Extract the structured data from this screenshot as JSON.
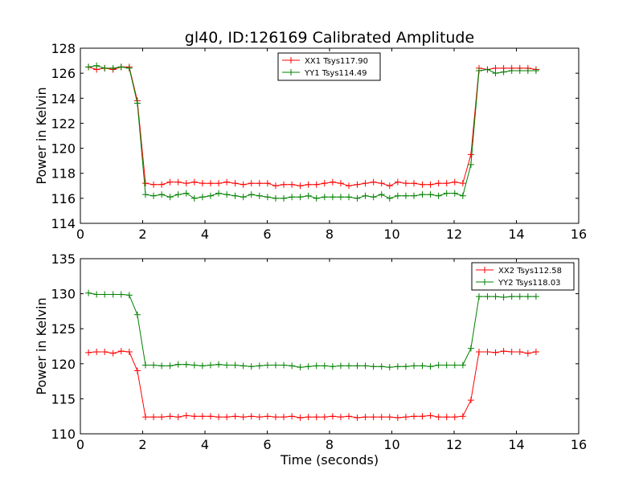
{
  "figure": {
    "title": "gl40, ID:126169 Calibrated Amplitude",
    "xlabel": "Time (seconds)"
  },
  "chart_data": [
    {
      "type": "line",
      "title": "gl40, ID:126169 Calibrated Amplitude",
      "xlabel": "",
      "ylabel": "Power in Kelvin",
      "xlim": [
        0,
        16
      ],
      "ylim": [
        114,
        128
      ],
      "x_ticks": [
        0,
        2,
        4,
        6,
        8,
        10,
        12,
        14,
        16
      ],
      "y_ticks": [
        114,
        116,
        118,
        120,
        122,
        124,
        126,
        128
      ],
      "grid": false,
      "legend_position": "top-center",
      "marker": "plus",
      "x": [
        0.26,
        0.52,
        0.78,
        1.05,
        1.31,
        1.57,
        1.83,
        2.09,
        2.35,
        2.61,
        2.88,
        3.14,
        3.4,
        3.66,
        3.92,
        4.18,
        4.44,
        4.7,
        4.97,
        5.23,
        5.49,
        5.75,
        6.01,
        6.27,
        6.53,
        6.79,
        7.06,
        7.32,
        7.58,
        7.84,
        8.1,
        8.36,
        8.62,
        8.89,
        9.15,
        9.41,
        9.67,
        9.93,
        10.19,
        10.45,
        10.71,
        10.98,
        11.24,
        11.5,
        11.76,
        12.02,
        12.28,
        12.54,
        12.8,
        13.07,
        13.33,
        13.59,
        13.85,
        14.11,
        14.37,
        14.63
      ],
      "series": [
        {
          "name": "XX1 Tsys117.90",
          "color": "#ff0000",
          "values": [
            126.5,
            126.3,
            126.4,
            126.3,
            126.5,
            126.5,
            123.8,
            117.2,
            117.1,
            117.1,
            117.3,
            117.3,
            117.2,
            117.3,
            117.2,
            117.2,
            117.2,
            117.3,
            117.2,
            117.1,
            117.2,
            117.2,
            117.2,
            117.0,
            117.1,
            117.1,
            117.0,
            117.1,
            117.1,
            117.2,
            117.3,
            117.2,
            117.0,
            117.1,
            117.2,
            117.3,
            117.2,
            117.0,
            117.3,
            117.2,
            117.2,
            117.1,
            117.1,
            117.2,
            117.2,
            117.3,
            117.2,
            119.5,
            126.4,
            126.3,
            126.4,
            126.4,
            126.4,
            126.4,
            126.4,
            126.3
          ]
        },
        {
          "name": "YY1 Tsys114.49",
          "color": "#008000",
          "values": [
            126.5,
            126.6,
            126.4,
            126.4,
            126.5,
            126.4,
            123.6,
            116.3,
            116.2,
            116.3,
            116.1,
            116.3,
            116.4,
            116.0,
            116.1,
            116.2,
            116.4,
            116.3,
            116.2,
            116.1,
            116.3,
            116.2,
            116.1,
            116.0,
            116.0,
            116.1,
            116.1,
            116.2,
            116.0,
            116.1,
            116.1,
            116.1,
            116.1,
            116.0,
            116.2,
            116.1,
            116.3,
            116.0,
            116.2,
            116.2,
            116.2,
            116.3,
            116.3,
            116.2,
            116.4,
            116.4,
            116.2,
            118.7,
            126.2,
            126.3,
            126.0,
            126.1,
            126.2,
            126.2,
            126.2,
            126.2
          ]
        }
      ]
    },
    {
      "type": "line",
      "title": "",
      "xlabel": "Time (seconds)",
      "ylabel": "Power in Kelvin",
      "xlim": [
        0,
        16
      ],
      "ylim": [
        110,
        135
      ],
      "x_ticks": [
        0,
        2,
        4,
        6,
        8,
        10,
        12,
        14,
        16
      ],
      "y_ticks": [
        110,
        115,
        120,
        125,
        130,
        135
      ],
      "grid": false,
      "legend_position": "top-right",
      "marker": "plus",
      "x": [
        0.26,
        0.52,
        0.78,
        1.05,
        1.31,
        1.57,
        1.83,
        2.09,
        2.35,
        2.61,
        2.88,
        3.14,
        3.4,
        3.66,
        3.92,
        4.18,
        4.44,
        4.7,
        4.97,
        5.23,
        5.49,
        5.75,
        6.01,
        6.27,
        6.53,
        6.79,
        7.06,
        7.32,
        7.58,
        7.84,
        8.1,
        8.36,
        8.62,
        8.89,
        9.15,
        9.41,
        9.67,
        9.93,
        10.19,
        10.45,
        10.71,
        10.98,
        11.24,
        11.5,
        11.76,
        12.02,
        12.28,
        12.54,
        12.8,
        13.07,
        13.33,
        13.59,
        13.85,
        14.11,
        14.37,
        14.63
      ],
      "series": [
        {
          "name": "XX2 Tsys112.58",
          "color": "#ff0000",
          "values": [
            121.6,
            121.7,
            121.7,
            121.5,
            121.8,
            121.7,
            119.0,
            112.4,
            112.4,
            112.4,
            112.5,
            112.4,
            112.6,
            112.5,
            112.5,
            112.5,
            112.4,
            112.4,
            112.5,
            112.4,
            112.5,
            112.4,
            112.5,
            112.4,
            112.4,
            112.5,
            112.3,
            112.4,
            112.4,
            112.4,
            112.5,
            112.4,
            112.5,
            112.3,
            112.4,
            112.4,
            112.4,
            112.4,
            112.3,
            112.4,
            112.5,
            112.5,
            112.6,
            112.4,
            112.4,
            112.4,
            112.5,
            114.8,
            121.7,
            121.7,
            121.6,
            121.8,
            121.7,
            121.7,
            121.5,
            121.7
          ]
        },
        {
          "name": "YY2 Tsys118.03",
          "color": "#008000",
          "values": [
            130.1,
            129.9,
            129.9,
            129.9,
            129.9,
            129.8,
            127.0,
            119.8,
            119.8,
            119.7,
            119.7,
            119.9,
            119.9,
            119.8,
            119.7,
            119.8,
            119.9,
            119.8,
            119.8,
            119.7,
            119.6,
            119.7,
            119.8,
            119.8,
            119.8,
            119.7,
            119.5,
            119.6,
            119.7,
            119.7,
            119.6,
            119.7,
            119.7,
            119.7,
            119.7,
            119.6,
            119.6,
            119.5,
            119.6,
            119.6,
            119.7,
            119.7,
            119.6,
            119.8,
            119.8,
            119.8,
            119.8,
            122.2,
            129.6,
            129.6,
            129.6,
            129.5,
            129.6,
            129.6,
            129.6,
            129.6
          ]
        }
      ]
    }
  ]
}
